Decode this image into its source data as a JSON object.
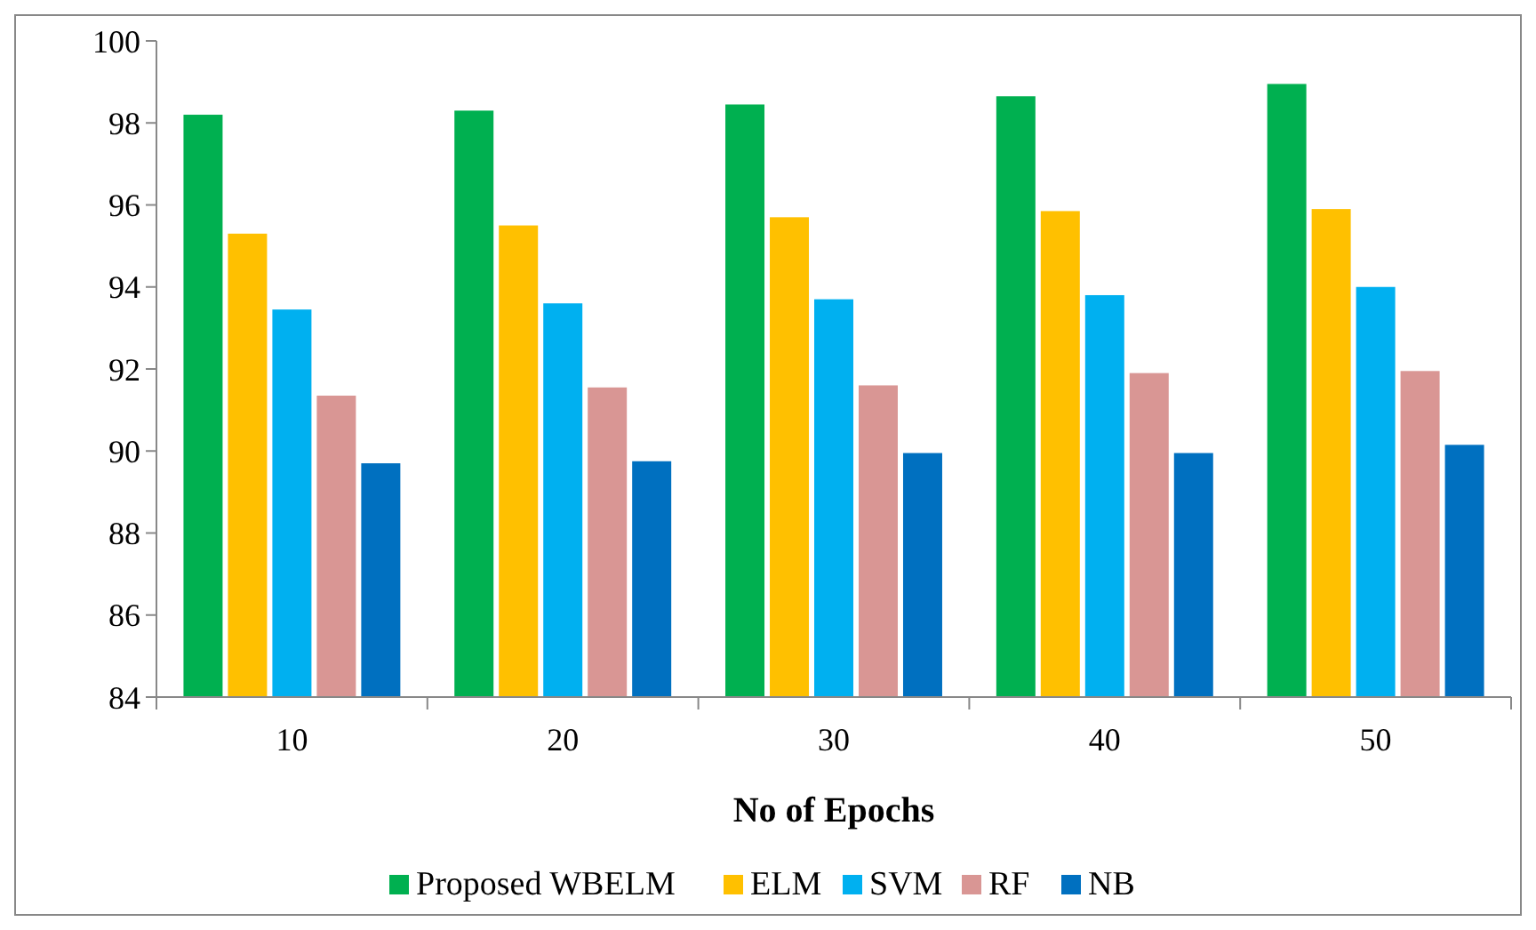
{
  "chart_data": {
    "type": "bar",
    "xlabel": "No of Epochs",
    "categories": [
      "10",
      "20",
      "30",
      "40",
      "50"
    ],
    "series": [
      {
        "name": "Proposed WBELM",
        "color": "#00b050",
        "values": [
          98.2,
          98.3,
          98.45,
          98.65,
          98.95
        ]
      },
      {
        "name": "ELM",
        "color": "#ffc000",
        "values": [
          95.3,
          95.5,
          95.7,
          95.85,
          95.9
        ]
      },
      {
        "name": "SVM",
        "color": "#00b0f0",
        "values": [
          93.45,
          93.6,
          93.7,
          93.8,
          94.0
        ]
      },
      {
        "name": "RF",
        "color": "#d99694",
        "values": [
          91.35,
          91.55,
          91.6,
          91.9,
          91.95
        ]
      },
      {
        "name": "NB",
        "color": "#0070c0",
        "values": [
          89.7,
          89.75,
          89.95,
          89.95,
          90.15
        ]
      }
    ],
    "ylim": [
      84,
      100
    ],
    "yticks": [
      84,
      86,
      88,
      90,
      92,
      94,
      96,
      98,
      100
    ],
    "grid": false,
    "legend": "bottom"
  }
}
